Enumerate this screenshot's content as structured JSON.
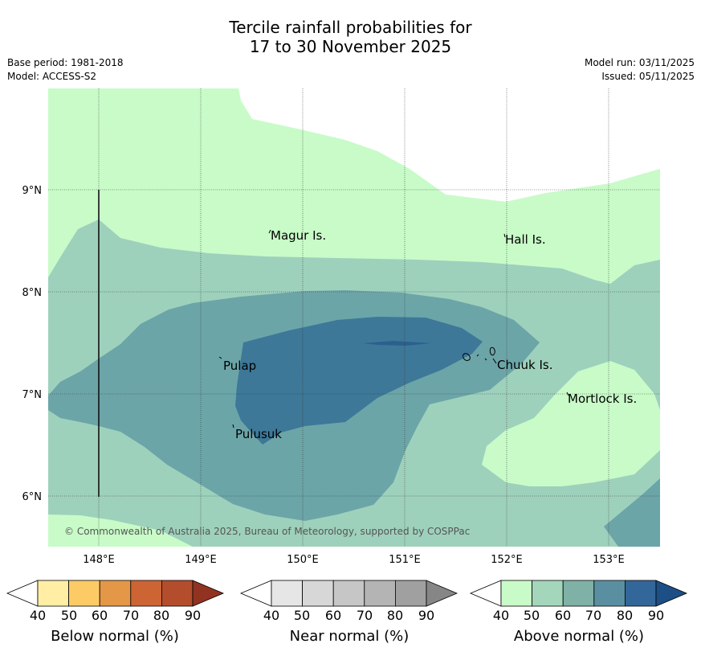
{
  "header": {
    "title_line1": "Tercile rainfall probabilities for",
    "title_line2": "17 to 30 November 2025",
    "base_period": "Base period: 1981-2018",
    "model": "Model: ACCESS-S2",
    "model_run": "Model run: 03/11/2025",
    "issued": "Issued: 05/11/2025"
  },
  "map": {
    "longitude_ticks": [
      "148°E",
      "149°E",
      "150°E",
      "151°E",
      "152°E",
      "153°E"
    ],
    "latitude_ticks": [
      "9°N",
      "8°N",
      "7°N",
      "6°N"
    ],
    "places": [
      "Magur Is.",
      "Hall Is.",
      "Pulap",
      "Chuuk Is.",
      "Mortlock Is.",
      "Pulusuk"
    ],
    "copyright": "© Commonwealth of Australia 2025, Bureau of Meteorology, supported by COSPPac",
    "colors": {
      "above_50": "#c8fbc8",
      "above_60": "#9ed1bc",
      "above_70": "#6ca5a8",
      "above_80": "#3d7898",
      "above_90": "#2d5f8e"
    }
  },
  "legend": {
    "ticks": [
      "40",
      "50",
      "60",
      "70",
      "80",
      "90"
    ],
    "below": {
      "label": "Below normal (%)",
      "colors": [
        "#ffeea4",
        "#fdcb66",
        "#e39747",
        "#cd6433",
        "#b44d2c",
        "#923321"
      ]
    },
    "near": {
      "label": "Near normal (%)",
      "colors": [
        "#e6e6e6",
        "#d7d7d7",
        "#c6c6c6",
        "#b4b4b4",
        "#a0a0a0",
        "#868686"
      ]
    },
    "above": {
      "label": "Above normal (%)",
      "colors": [
        "#c8fbc8",
        "#a3d6bb",
        "#7fb1a6",
        "#5a8fa1",
        "#33679a",
        "#1c4f86"
      ]
    }
  }
}
